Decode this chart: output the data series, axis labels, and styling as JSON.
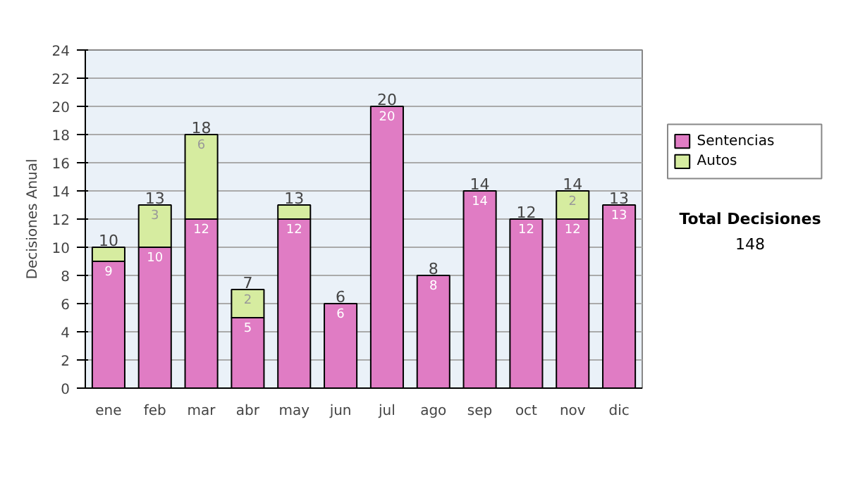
{
  "chart_data": {
    "type": "bar",
    "stacked": true,
    "ylabel": "Decisiones Anual",
    "categories": [
      "ene",
      "feb",
      "mar",
      "abr",
      "may",
      "jun",
      "jul",
      "ago",
      "sep",
      "oct",
      "nov",
      "dic"
    ],
    "series": [
      {
        "name": "Sentencias",
        "color": "#e07cc4",
        "values": [
          9,
          10,
          12,
          5,
          12,
          6,
          20,
          8,
          14,
          12,
          12,
          13
        ],
        "value_labels": [
          "9",
          "10",
          "12",
          "5",
          "12",
          "6",
          "20",
          "8",
          "14",
          "12",
          "12",
          "13"
        ]
      },
      {
        "name": "Autos",
        "color": "#d6eca0",
        "values": [
          1,
          3,
          6,
          2,
          1,
          0,
          0,
          0,
          0,
          0,
          2,
          0
        ],
        "value_labels": [
          null,
          "3",
          "6",
          "2",
          null,
          null,
          null,
          null,
          null,
          null,
          "2",
          null
        ]
      }
    ],
    "totals": [
      "10",
      "13",
      "18",
      "7",
      "13",
      "6",
      "20",
      "8",
      "14",
      "12",
      "14",
      "13"
    ],
    "ylim": [
      0,
      24
    ],
    "yticks": [
      0,
      2,
      4,
      6,
      8,
      10,
      12,
      14,
      16,
      18,
      20,
      22,
      24
    ],
    "grid": "y",
    "legend": "right",
    "annotations": [
      "Total Decisiones",
      "148"
    ]
  }
}
